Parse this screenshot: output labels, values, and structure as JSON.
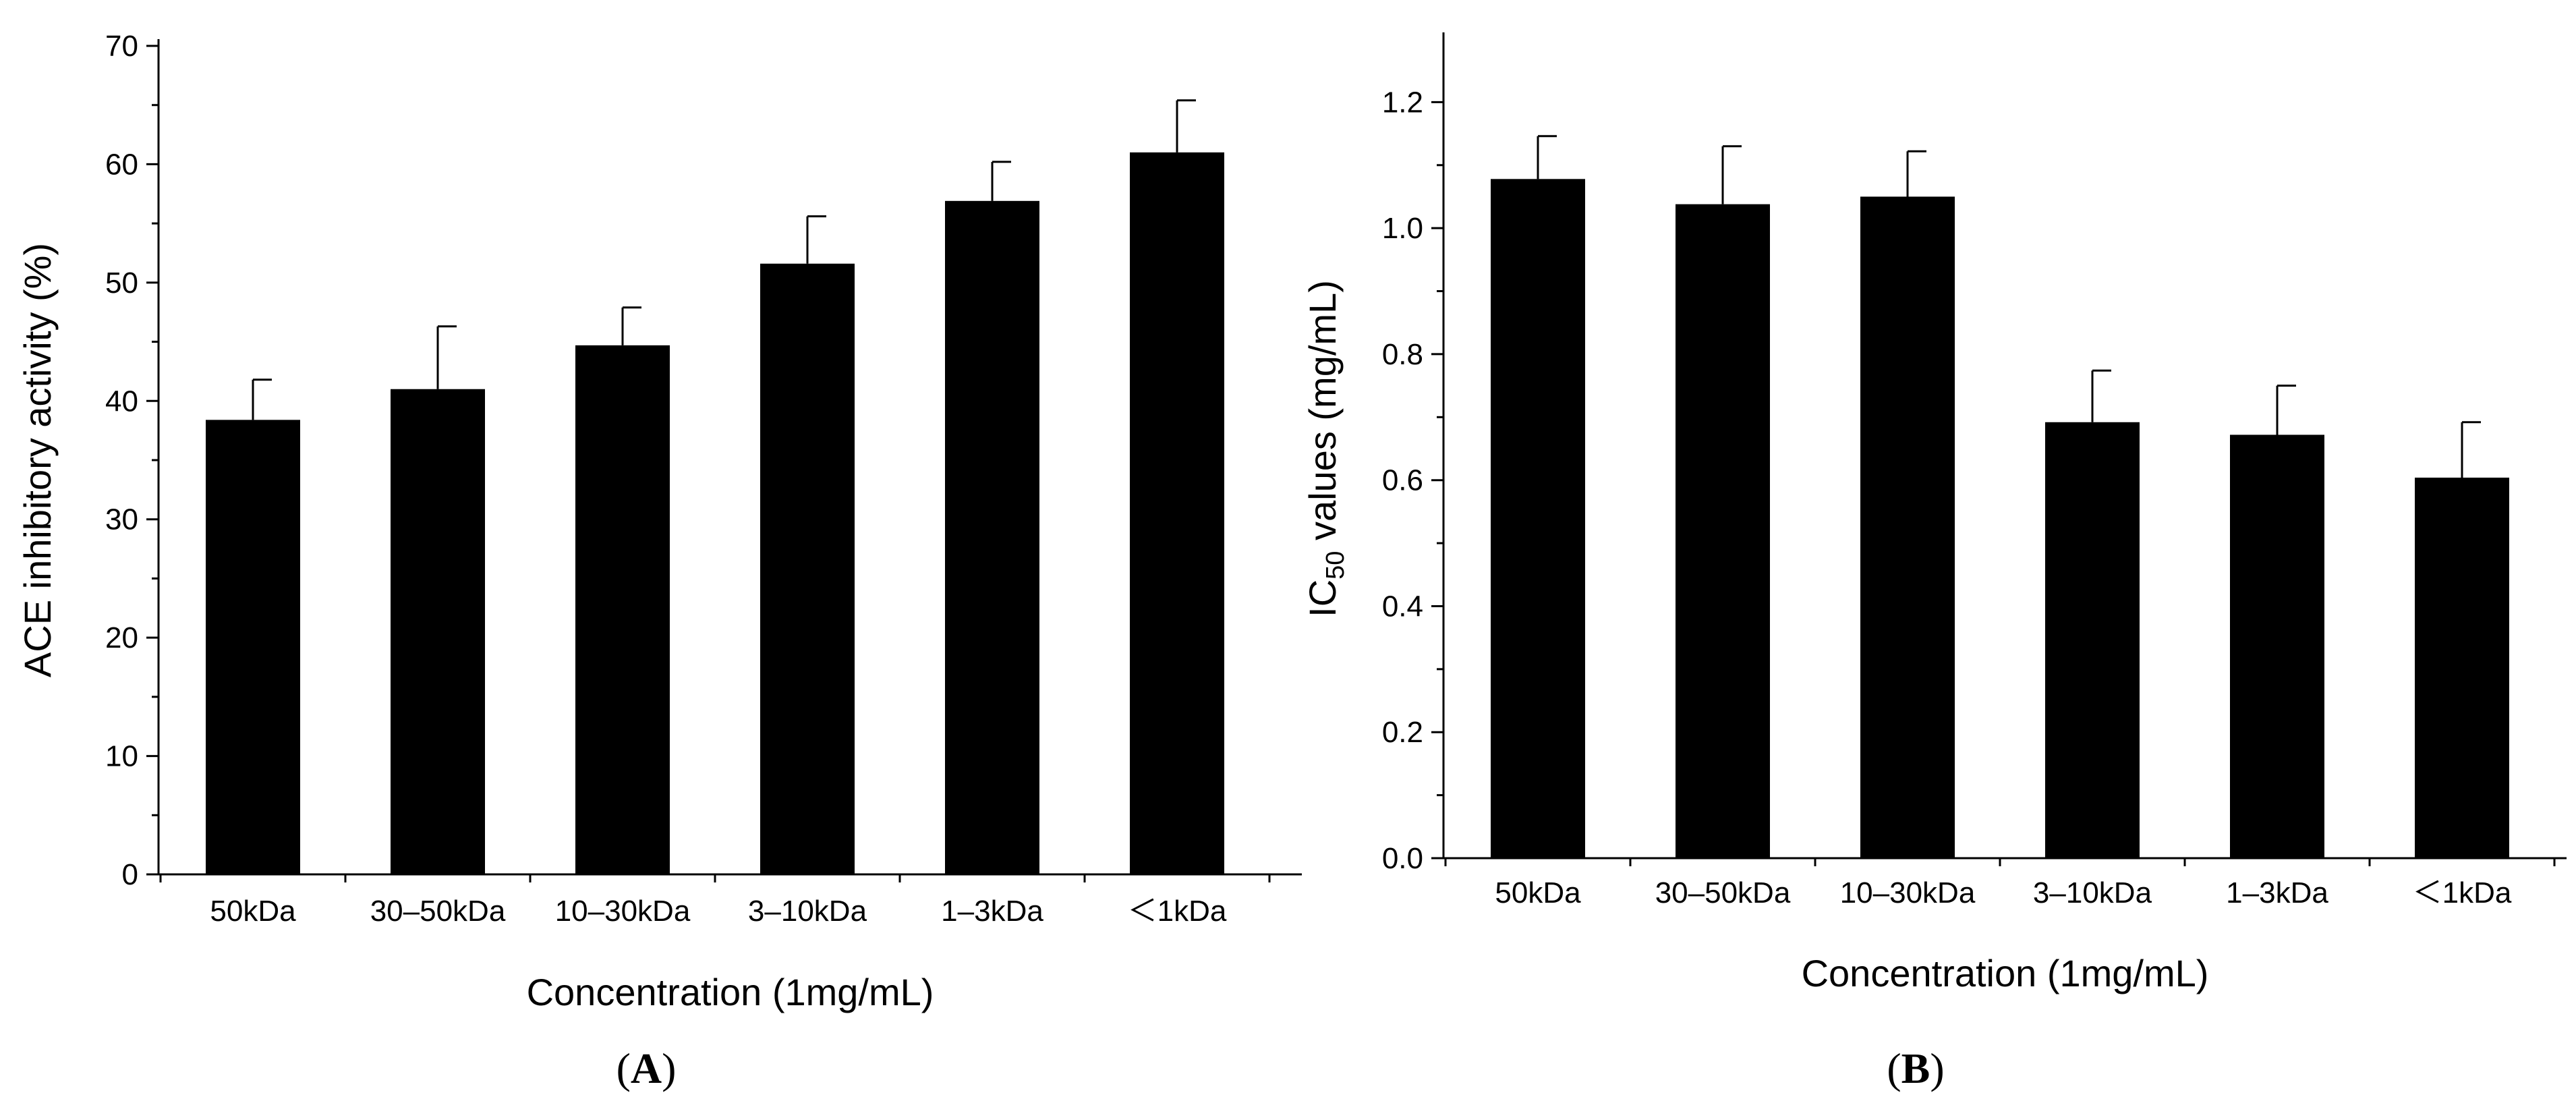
{
  "colors": {
    "bar": "#000000",
    "axis": "#000000",
    "background": "#ffffff"
  },
  "chart_data": [
    {
      "type": "bar",
      "panel": "A",
      "panel_label": "A",
      "categories": [
        "50kDa",
        "30–50kDa",
        "10–30kDa",
        "3–10kDa",
        "1–3kDa",
        "＜1kDa"
      ],
      "values": [
        38.4,
        41.0,
        44.7,
        51.6,
        56.9,
        61.0
      ],
      "errors": [
        3.4,
        5.3,
        3.2,
        4.0,
        3.3,
        4.4
      ],
      "xlabel": "Concentration (1mg/mL)",
      "ylabel": "ACE inhibitory activity (%)",
      "ylim": [
        0,
        70
      ],
      "yticks": [
        0,
        10,
        20,
        30,
        40,
        50,
        60,
        70
      ],
      "ytick_labels": [
        "0",
        "10",
        "20",
        "30",
        "40",
        "50",
        "60",
        "70"
      ],
      "grid": false,
      "legend": "none"
    },
    {
      "type": "bar",
      "panel": "B",
      "panel_label": "B",
      "categories": [
        "50kDa",
        "30–50kDa",
        "10–30kDa",
        "3–10kDa",
        "1–3kDa",
        "＜1kDa"
      ],
      "values": [
        1.078,
        1.038,
        1.05,
        0.692,
        0.672,
        0.604
      ],
      "errors": [
        0.068,
        0.092,
        0.072,
        0.082,
        0.078,
        0.088
      ],
      "xlabel": "Concentration (1mg/mL)",
      "ylabel": "values (mg/mL)",
      "ylabel_prefix": "IC",
      "ylabel_subscript": "50",
      "ylim": [
        0,
        1.3
      ],
      "yticks": [
        0,
        0.2,
        0.4,
        0.6,
        0.8,
        1.0,
        1.2
      ],
      "ytick_labels": [
        "0.0",
        "0.2",
        "0.4",
        "0.6",
        "0.8",
        "1.0",
        "1.2"
      ],
      "grid": false,
      "legend": "none"
    }
  ]
}
